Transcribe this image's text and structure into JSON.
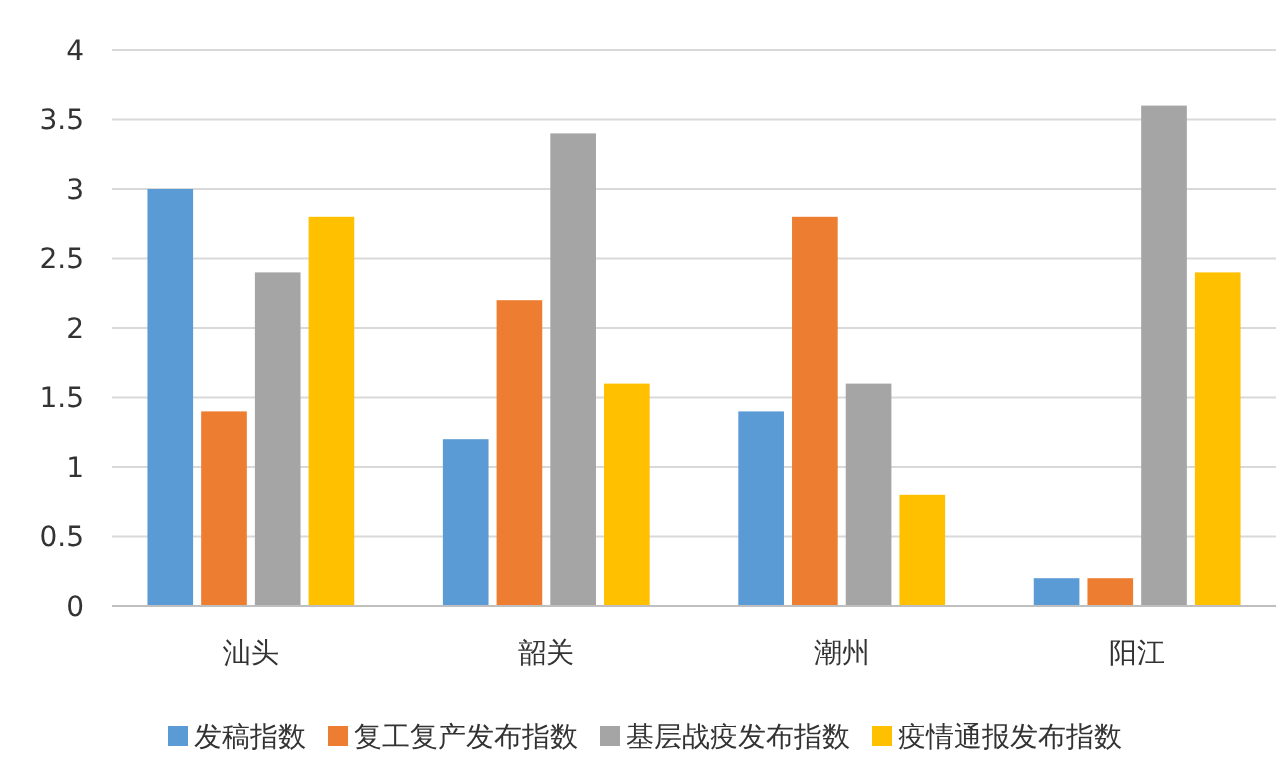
{
  "chart_data": {
    "type": "bar",
    "categories": [
      "汕头",
      "韶关",
      "潮州",
      "阳江"
    ],
    "series": [
      {
        "name": "发稿指数",
        "color": "#5b9bd5",
        "values": [
          3,
          1.2,
          1.4,
          0.2
        ]
      },
      {
        "name": "复工复产发布指数",
        "color": "#ed7d31",
        "values": [
          1.4,
          2.2,
          2.8,
          0.2
        ]
      },
      {
        "name": "基层战疫发布指数",
        "color": "#a5a5a5",
        "values": [
          2.4,
          3.4,
          1.6,
          3.6
        ]
      },
      {
        "name": "疫情通报发布指数",
        "color": "#ffc000",
        "values": [
          2.8,
          1.6,
          0.8,
          2.4
        ]
      }
    ],
    "ylim": [
      0,
      4
    ],
    "yticks": [
      0,
      0.5,
      1,
      1.5,
      2,
      2.5,
      3,
      3.5,
      4
    ],
    "grid": "y",
    "legend": "bottom"
  }
}
